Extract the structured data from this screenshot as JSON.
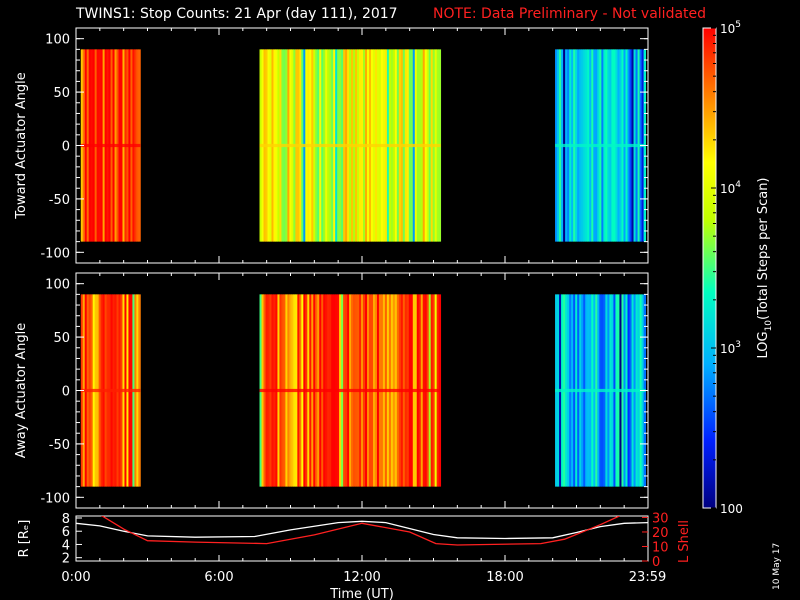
{
  "title": "TWINS1: Stop Counts: 21 Apr (day 111), 2017",
  "note": "NOTE: Data Preliminary - Not validated",
  "stamp": "10 May 17",
  "colors": {
    "background": "#000000",
    "note": "#ff2020",
    "r_line": "#ffffff",
    "l_line": "#ff2020",
    "right_axis": "#ff2020"
  },
  "chart_data": [
    {
      "id": "toward",
      "type": "heatmap",
      "ylabel": "Toward Actuator Angle",
      "ylim": [
        -110,
        110
      ],
      "yticks": [
        "100",
        "50",
        "0",
        "-50",
        "-100"
      ],
      "ytick_values": [
        100,
        50,
        0,
        -50,
        -100
      ],
      "data_ylim": [
        -90,
        90
      ],
      "xlim_hours": [
        0,
        24
      ],
      "data_blocks": [
        {
          "start_h": 0.2,
          "end_h": 2.7,
          "log10_level": 4.8
        },
        {
          "start_h": 7.7,
          "end_h": 15.3,
          "log10_level": 4.0
        },
        {
          "start_h": 20.1,
          "end_h": 23.9,
          "log10_level": 3.0
        }
      ]
    },
    {
      "id": "away",
      "type": "heatmap",
      "ylabel": "Away Actuator Angle",
      "ylim": [
        -110,
        110
      ],
      "yticks": [
        "100",
        "50",
        "0",
        "-50",
        "-100"
      ],
      "ytick_values": [
        100,
        50,
        0,
        -50,
        -100
      ],
      "data_ylim": [
        -90,
        90
      ],
      "xlim_hours": [
        0,
        24
      ],
      "data_blocks": [
        {
          "start_h": 0.2,
          "end_h": 2.7,
          "log10_level": 4.6
        },
        {
          "start_h": 7.7,
          "end_h": 15.3,
          "log10_level": 4.7
        },
        {
          "start_h": 20.1,
          "end_h": 23.9,
          "log10_level": 3.0
        }
      ]
    },
    {
      "id": "ephemeris",
      "type": "line",
      "ylabel_left": "R [Rₑ]",
      "ylabel_right": "L Shell",
      "xlabel": "Time (UT)",
      "xticks": [
        "0:00",
        "6:00",
        "12:00",
        "18:00",
        "23:59"
      ],
      "xtick_hours": [
        0,
        6,
        12,
        18,
        23.98
      ],
      "ylim_left": [
        1.5,
        8.3
      ],
      "yticks_left": [
        "8",
        "6",
        "4",
        "2"
      ],
      "ytick_values_left": [
        8,
        6,
        4,
        2
      ],
      "ylim_right": [
        0,
        31
      ],
      "yticks_right": [
        "30",
        "20",
        "10",
        "0"
      ],
      "ytick_values_right": [
        30,
        20,
        10,
        0
      ],
      "series": [
        {
          "axis": "left",
          "color": "#ffffff",
          "x": [
            0,
            1,
            2,
            3,
            5,
            7.5,
            9,
            11,
            12,
            13,
            15,
            16,
            18,
            20,
            21,
            22,
            23,
            24
          ],
          "y": [
            7.2,
            6.8,
            6.0,
            5.3,
            5.1,
            5.2,
            6.2,
            7.3,
            7.5,
            7.3,
            5.5,
            5.0,
            4.9,
            5.0,
            5.8,
            6.7,
            7.2,
            7.3
          ]
        },
        {
          "axis": "right",
          "color": "#ff2020",
          "x": [
            1.0,
            2.0,
            3.0,
            5.0,
            8.0,
            10,
            12,
            14,
            15.1,
            16,
            19.5,
            20.5,
            22,
            22.8
          ],
          "y": [
            32,
            22,
            14,
            13,
            12,
            18,
            26,
            20,
            12,
            11,
            12,
            15,
            25,
            31
          ]
        }
      ]
    }
  ],
  "colorbar": {
    "label": "LOG10(Total Steps per Scan)",
    "label_parts": [
      "LOG",
      "10",
      "(Total Steps per Scan)"
    ],
    "scale": "log",
    "range": [
      100,
      100000
    ],
    "ticks": [
      {
        "value": 100000,
        "mantissa": "10",
        "exponent": "5"
      },
      {
        "value": 10000,
        "mantissa": "10",
        "exponent": "4"
      },
      {
        "value": 1000,
        "mantissa": "10",
        "exponent": "3"
      },
      {
        "value": 100,
        "mantissa": "100",
        "exponent": ""
      }
    ]
  }
}
